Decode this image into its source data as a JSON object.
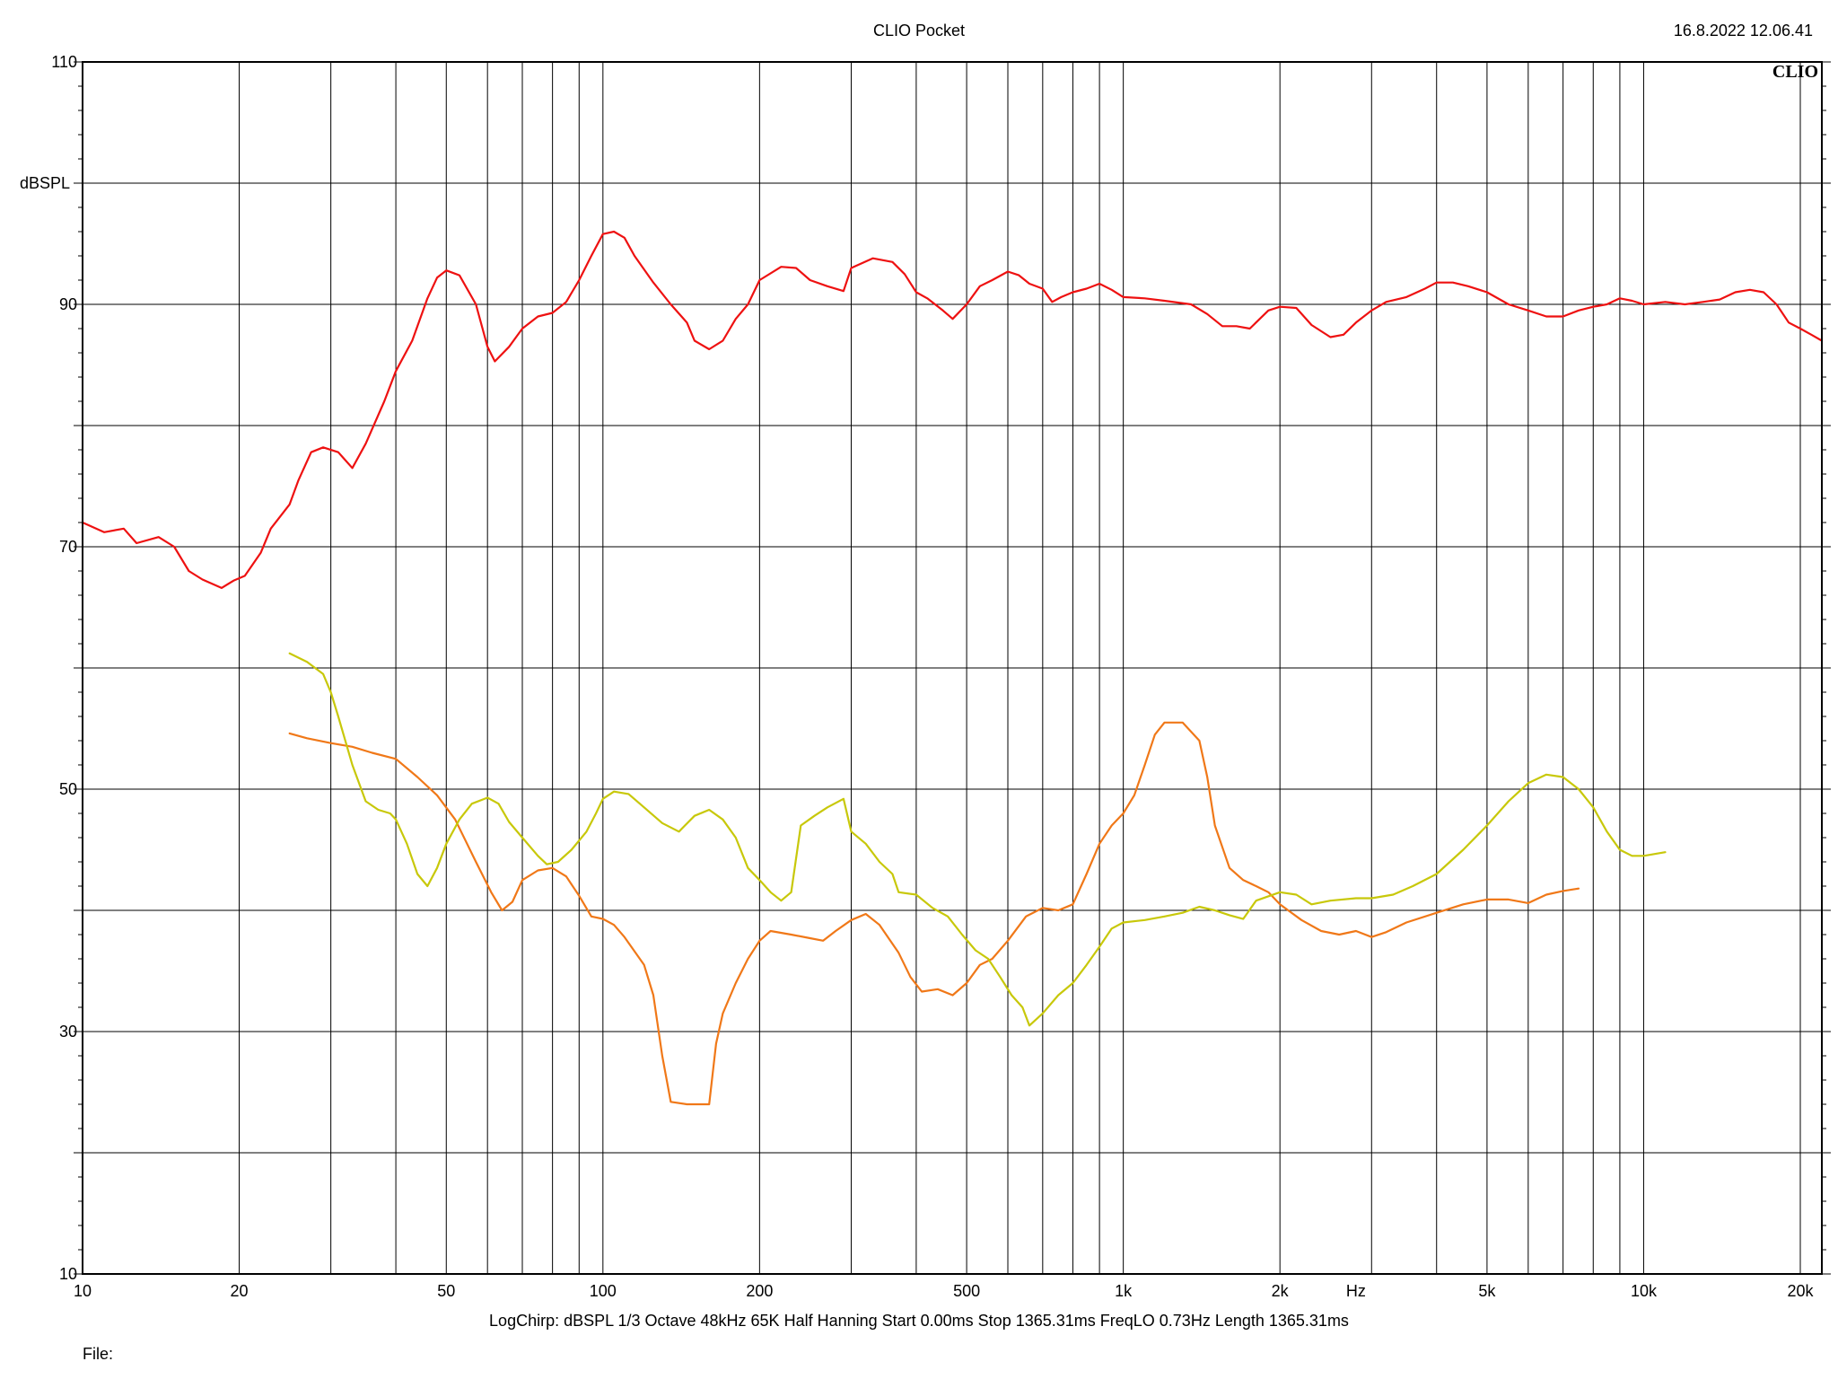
{
  "header": {
    "title": "CLIO Pocket",
    "timestamp": "16.8.2022 12.06.41",
    "brand": "CLIO"
  },
  "footer": {
    "settings": "LogChirp:  dBSPL   1/3 Octave   48kHz   65K   Half Hanning   Start 0.00ms    Stop 1365.31ms    FreqLO 0.73Hz    Length 1365.31ms",
    "file_label": "File:"
  },
  "chart_data": {
    "type": "line",
    "title": "CLIO Pocket",
    "xlabel": "Hz",
    "ylabel": "dBSPL",
    "xscale": "log",
    "xlim": [
      10,
      22000
    ],
    "ylim": [
      10,
      110
    ],
    "grid": true,
    "x_ticks": [
      {
        "v": 10,
        "label": "10"
      },
      {
        "v": 20,
        "label": "20"
      },
      {
        "v": 50,
        "label": "50"
      },
      {
        "v": 100,
        "label": "100"
      },
      {
        "v": 200,
        "label": "200"
      },
      {
        "v": 500,
        "label": "500"
      },
      {
        "v": 1000,
        "label": "1k"
      },
      {
        "v": 2000,
        "label": "2k"
      },
      {
        "v": 5000,
        "label": "5k"
      },
      {
        "v": 10000,
        "label": "10k"
      },
      {
        "v": 20000,
        "label": "20k"
      }
    ],
    "y_ticks": [
      {
        "v": 10,
        "label": "10"
      },
      {
        "v": 30,
        "label": "30"
      },
      {
        "v": 50,
        "label": "50"
      },
      {
        "v": 70,
        "label": "70"
      },
      {
        "v": 90,
        "label": "90"
      },
      {
        "v": 110,
        "label": "110"
      }
    ],
    "series": [
      {
        "color": "#ee1111",
        "points": [
          [
            10,
            72
          ],
          [
            11,
            71.2
          ],
          [
            12,
            71.5
          ],
          [
            12.7,
            70.3
          ],
          [
            14,
            70.8
          ],
          [
            15,
            70
          ],
          [
            16,
            68
          ],
          [
            17,
            67.3
          ],
          [
            18.5,
            66.6
          ],
          [
            19.5,
            67.2
          ],
          [
            20.5,
            67.6
          ],
          [
            22,
            69.5
          ],
          [
            23,
            71.5
          ],
          [
            25,
            73.5
          ],
          [
            26,
            75.5
          ],
          [
            27.5,
            77.8
          ],
          [
            29,
            78.2
          ],
          [
            31,
            77.8
          ],
          [
            33,
            76.5
          ],
          [
            35,
            78.5
          ],
          [
            38,
            82
          ],
          [
            40,
            84.5
          ],
          [
            43,
            87
          ],
          [
            46,
            90.5
          ],
          [
            48,
            92.2
          ],
          [
            50,
            92.8
          ],
          [
            53,
            92.4
          ],
          [
            57,
            90
          ],
          [
            60,
            86.5
          ],
          [
            62,
            85.3
          ],
          [
            66,
            86.5
          ],
          [
            70,
            88
          ],
          [
            75,
            89
          ],
          [
            80,
            89.3
          ],
          [
            85,
            90.2
          ],
          [
            90,
            92
          ],
          [
            95,
            94
          ],
          [
            100,
            95.8
          ],
          [
            105,
            96
          ],
          [
            110,
            95.5
          ],
          [
            115,
            94
          ],
          [
            125,
            91.8
          ],
          [
            135,
            90
          ],
          [
            145,
            88.5
          ],
          [
            150,
            87
          ],
          [
            160,
            86.3
          ],
          [
            170,
            87
          ],
          [
            180,
            88.8
          ],
          [
            190,
            90
          ],
          [
            200,
            92
          ],
          [
            220,
            93.1
          ],
          [
            235,
            93
          ],
          [
            250,
            92
          ],
          [
            270,
            91.5
          ],
          [
            290,
            91.1
          ],
          [
            300,
            93
          ],
          [
            330,
            93.8
          ],
          [
            360,
            93.5
          ],
          [
            380,
            92.5
          ],
          [
            400,
            91
          ],
          [
            420,
            90.5
          ],
          [
            450,
            89.5
          ],
          [
            470,
            88.8
          ],
          [
            500,
            90
          ],
          [
            530,
            91.5
          ],
          [
            560,
            92
          ],
          [
            600,
            92.7
          ],
          [
            630,
            92.4
          ],
          [
            660,
            91.7
          ],
          [
            700,
            91.3
          ],
          [
            730,
            90.2
          ],
          [
            760,
            90.6
          ],
          [
            800,
            91
          ],
          [
            850,
            91.3
          ],
          [
            900,
            91.7
          ],
          [
            950,
            91.2
          ],
          [
            1000,
            90.6
          ],
          [
            1100,
            90.5
          ],
          [
            1200,
            90.3
          ],
          [
            1350,
            90
          ],
          [
            1450,
            89.2
          ],
          [
            1550,
            88.2
          ],
          [
            1650,
            88.2
          ],
          [
            1750,
            88
          ],
          [
            1900,
            89.5
          ],
          [
            2000,
            89.8
          ],
          [
            2150,
            89.7
          ],
          [
            2300,
            88.3
          ],
          [
            2500,
            87.3
          ],
          [
            2650,
            87.5
          ],
          [
            2800,
            88.5
          ],
          [
            3000,
            89.5
          ],
          [
            3200,
            90.2
          ],
          [
            3500,
            90.6
          ],
          [
            3800,
            91.3
          ],
          [
            4000,
            91.8
          ],
          [
            4300,
            91.8
          ],
          [
            4600,
            91.5
          ],
          [
            5000,
            91
          ],
          [
            5500,
            90
          ],
          [
            6000,
            89.5
          ],
          [
            6500,
            89
          ],
          [
            7000,
            89
          ],
          [
            7500,
            89.5
          ],
          [
            8000,
            89.8
          ],
          [
            8500,
            90
          ],
          [
            9000,
            90.5
          ],
          [
            9500,
            90.3
          ],
          [
            10000,
            90
          ],
          [
            11000,
            90.2
          ],
          [
            12000,
            90
          ],
          [
            13000,
            90.2
          ],
          [
            14000,
            90.4
          ],
          [
            15000,
            91
          ],
          [
            16000,
            91.2
          ],
          [
            17000,
            91
          ],
          [
            18000,
            90
          ],
          [
            19000,
            88.5
          ],
          [
            20000,
            88
          ],
          [
            21000,
            87.5
          ],
          [
            22000,
            87
          ]
        ]
      },
      {
        "color": "#f07818",
        "points": [
          [
            25,
            54.6
          ],
          [
            27,
            54.2
          ],
          [
            30,
            53.8
          ],
          [
            33,
            53.5
          ],
          [
            36,
            53
          ],
          [
            40,
            52.5
          ],
          [
            44,
            51
          ],
          [
            48,
            49.5
          ],
          [
            52,
            47.5
          ],
          [
            57,
            44
          ],
          [
            61,
            41.5
          ],
          [
            64,
            40
          ],
          [
            67,
            40.7
          ],
          [
            70,
            42.5
          ],
          [
            75,
            43.3
          ],
          [
            80,
            43.5
          ],
          [
            85,
            42.8
          ],
          [
            90,
            41.2
          ],
          [
            95,
            39.5
          ],
          [
            100,
            39.3
          ],
          [
            105,
            38.8
          ],
          [
            110,
            37.8
          ],
          [
            120,
            35.5
          ],
          [
            125,
            33
          ],
          [
            130,
            28
          ],
          [
            135,
            24.2
          ],
          [
            145,
            24
          ],
          [
            155,
            24
          ],
          [
            160,
            24
          ],
          [
            165,
            29
          ],
          [
            170,
            31.5
          ],
          [
            180,
            34
          ],
          [
            190,
            36
          ],
          [
            200,
            37.5
          ],
          [
            210,
            38.3
          ],
          [
            230,
            38
          ],
          [
            250,
            37.7
          ],
          [
            265,
            37.5
          ],
          [
            280,
            38.3
          ],
          [
            300,
            39.2
          ],
          [
            320,
            39.7
          ],
          [
            340,
            38.8
          ],
          [
            370,
            36.5
          ],
          [
            390,
            34.5
          ],
          [
            410,
            33.3
          ],
          [
            440,
            33.5
          ],
          [
            470,
            33
          ],
          [
            500,
            34
          ],
          [
            530,
            35.5
          ],
          [
            560,
            36
          ],
          [
            600,
            37.5
          ],
          [
            650,
            39.5
          ],
          [
            700,
            40.2
          ],
          [
            750,
            40
          ],
          [
            800,
            40.5
          ],
          [
            850,
            43
          ],
          [
            900,
            45.5
          ],
          [
            950,
            47
          ],
          [
            1000,
            48
          ],
          [
            1050,
            49.5
          ],
          [
            1100,
            52
          ],
          [
            1150,
            54.5
          ],
          [
            1200,
            55.5
          ],
          [
            1300,
            55.5
          ],
          [
            1400,
            54
          ],
          [
            1450,
            51
          ],
          [
            1500,
            47
          ],
          [
            1600,
            43.5
          ],
          [
            1700,
            42.5
          ],
          [
            1800,
            42
          ],
          [
            1900,
            41.5
          ],
          [
            2000,
            40.5
          ],
          [
            2200,
            39.2
          ],
          [
            2400,
            38.3
          ],
          [
            2600,
            38
          ],
          [
            2800,
            38.3
          ],
          [
            3000,
            37.8
          ],
          [
            3200,
            38.2
          ],
          [
            3500,
            39
          ],
          [
            4000,
            39.8
          ],
          [
            4500,
            40.5
          ],
          [
            5000,
            40.9
          ],
          [
            5500,
            40.9
          ],
          [
            6000,
            40.6
          ],
          [
            6500,
            41.3
          ],
          [
            7000,
            41.6
          ],
          [
            7500,
            41.8
          ]
        ]
      },
      {
        "color": "#c8c80a",
        "points": [
          [
            25,
            61.2
          ],
          [
            27,
            60.5
          ],
          [
            29,
            59.5
          ],
          [
            30,
            58
          ],
          [
            31,
            56
          ],
          [
            33,
            52
          ],
          [
            35,
            49
          ],
          [
            37,
            48.3
          ],
          [
            39,
            48
          ],
          [
            40,
            47.5
          ],
          [
            42,
            45.5
          ],
          [
            44,
            43
          ],
          [
            46,
            42
          ],
          [
            48,
            43.5
          ],
          [
            50,
            45.5
          ],
          [
            53,
            47.5
          ],
          [
            56,
            48.8
          ],
          [
            60,
            49.3
          ],
          [
            63,
            48.8
          ],
          [
            66,
            47.3
          ],
          [
            70,
            46
          ],
          [
            75,
            44.5
          ],
          [
            78,
            43.8
          ],
          [
            82,
            44
          ],
          [
            87,
            45
          ],
          [
            93,
            46.5
          ],
          [
            97,
            48
          ],
          [
            100,
            49.2
          ],
          [
            105,
            49.8
          ],
          [
            112,
            49.6
          ],
          [
            120,
            48.5
          ],
          [
            130,
            47.2
          ],
          [
            140,
            46.5
          ],
          [
            150,
            47.8
          ],
          [
            160,
            48.3
          ],
          [
            170,
            47.5
          ],
          [
            180,
            46
          ],
          [
            190,
            43.5
          ],
          [
            200,
            42.5
          ],
          [
            210,
            41.5
          ],
          [
            220,
            40.8
          ],
          [
            230,
            41.5
          ],
          [
            240,
            47
          ],
          [
            255,
            47.8
          ],
          [
            270,
            48.5
          ],
          [
            290,
            49.2
          ],
          [
            300,
            46.5
          ],
          [
            320,
            45.5
          ],
          [
            340,
            44
          ],
          [
            360,
            43
          ],
          [
            370,
            41.5
          ],
          [
            400,
            41.3
          ],
          [
            430,
            40.2
          ],
          [
            460,
            39.5
          ],
          [
            490,
            38
          ],
          [
            520,
            36.7
          ],
          [
            550,
            36
          ],
          [
            580,
            34.5
          ],
          [
            610,
            33
          ],
          [
            640,
            32
          ],
          [
            660,
            30.5
          ],
          [
            700,
            31.5
          ],
          [
            750,
            33
          ],
          [
            800,
            34
          ],
          [
            850,
            35.5
          ],
          [
            900,
            37
          ],
          [
            950,
            38.5
          ],
          [
            1000,
            39
          ],
          [
            1100,
            39.2
          ],
          [
            1200,
            39.5
          ],
          [
            1300,
            39.8
          ],
          [
            1400,
            40.3
          ],
          [
            1500,
            40
          ],
          [
            1600,
            39.6
          ],
          [
            1700,
            39.3
          ],
          [
            1800,
            40.8
          ],
          [
            2000,
            41.5
          ],
          [
            2150,
            41.3
          ],
          [
            2300,
            40.5
          ],
          [
            2500,
            40.8
          ],
          [
            2800,
            41
          ],
          [
            3000,
            41
          ],
          [
            3300,
            41.3
          ],
          [
            3600,
            42
          ],
          [
            4000,
            43
          ],
          [
            4500,
            45
          ],
          [
            5000,
            47
          ],
          [
            5500,
            49
          ],
          [
            6000,
            50.5
          ],
          [
            6500,
            51.2
          ],
          [
            7000,
            51
          ],
          [
            7500,
            50
          ],
          [
            8000,
            48.5
          ],
          [
            8500,
            46.5
          ],
          [
            9000,
            45
          ],
          [
            9500,
            44.5
          ],
          [
            10000,
            44.5
          ],
          [
            11000,
            44.8
          ]
        ]
      }
    ]
  }
}
